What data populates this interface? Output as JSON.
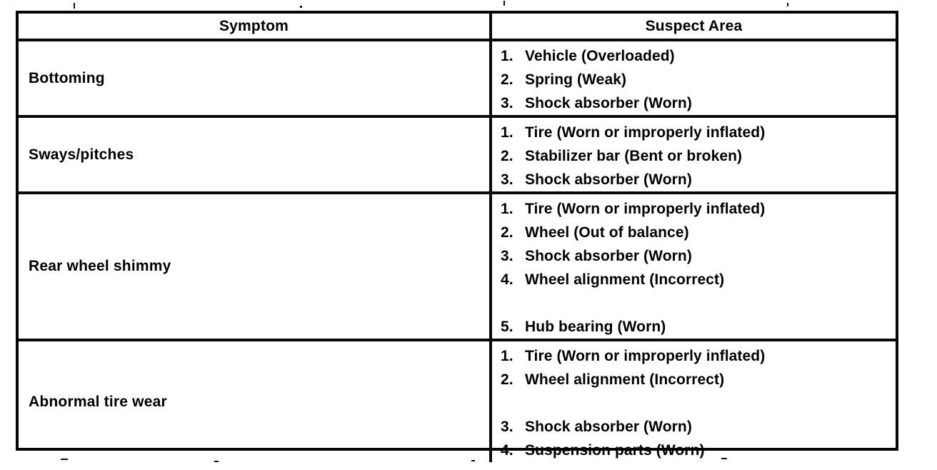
{
  "table": {
    "border_color": "#000000",
    "text_color": "#000000",
    "headers": {
      "symptom": "Symptom",
      "suspect_area": "Suspect Area"
    },
    "rows": [
      {
        "symptom": "Bottoming",
        "suspects": [
          {
            "num": "1.",
            "text": "Vehicle (Overloaded)"
          },
          {
            "num": "2.",
            "text": "Spring (Weak)"
          },
          {
            "num": "3.",
            "text": "Shock absorber (Worn)"
          }
        ]
      },
      {
        "symptom": "Sways/pitches",
        "suspects": [
          {
            "num": "1.",
            "text": "Tire (Worn or improperly inflated)"
          },
          {
            "num": "2.",
            "text": "Stabilizer bar (Bent or broken)"
          },
          {
            "num": "3.",
            "text": "Shock absorber (Worn)"
          }
        ]
      },
      {
        "symptom": "Rear wheel shimmy",
        "suspects": [
          {
            "num": "1.",
            "text": "Tire (Worn or improperly inflated)"
          },
          {
            "num": "2.",
            "text": "Wheel (Out of balance)"
          },
          {
            "num": "3.",
            "text": "Shock absorber (Worn)"
          },
          {
            "num": "4.",
            "text": "Wheel alignment (Incorrect)"
          },
          {
            "num": "",
            "text": ""
          },
          {
            "num": "5.",
            "text": "Hub bearing (Worn)"
          }
        ]
      },
      {
        "symptom": "Abnormal tire wear",
        "suspects": [
          {
            "num": "1.",
            "text": "Tire (Worn or improperly inflated)"
          },
          {
            "num": "2.",
            "text": "Wheel alignment (Incorrect)"
          },
          {
            "num": "",
            "text": ""
          },
          {
            "num": "3.",
            "text": "Shock absorber (Worn)"
          },
          {
            "num": "4.",
            "text": "Suspension parts (Worn)"
          }
        ]
      }
    ]
  }
}
